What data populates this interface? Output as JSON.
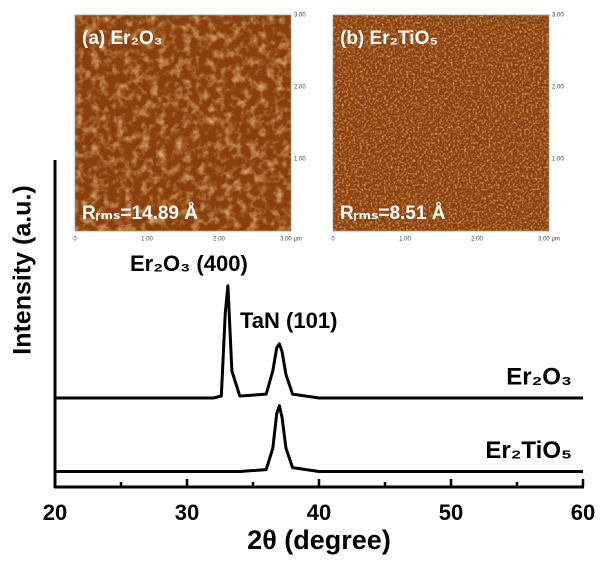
{
  "chart_data": {
    "type": "line",
    "xlabel": "2θ (degree)",
    "ylabel": "Intensity (a.u.)",
    "xlim": [
      20,
      60
    ],
    "xticks": [
      20,
      30,
      40,
      50,
      60
    ],
    "xminor": [
      25,
      35,
      45,
      55
    ],
    "ylim": [
      0,
      100
    ],
    "x": [
      20,
      25,
      30,
      32,
      32.6,
      32.9,
      33.1,
      33.4,
      34,
      36,
      36.5,
      36.8,
      37,
      37.2,
      37.5,
      38,
      40,
      45,
      50,
      55,
      60
    ],
    "series": [
      {
        "name": "Er₂O₃",
        "color": "#000000",
        "values": [
          23,
          23,
          23,
          23,
          23.5,
          45,
          52,
          30,
          23.5,
          24,
          30,
          36,
          37,
          35,
          29,
          24,
          23,
          23,
          23,
          23,
          23
        ]
      },
      {
        "name": "Er₂TiO₅",
        "color": "#000000",
        "values": [
          4,
          4,
          4,
          4,
          4,
          4,
          4,
          4,
          4,
          4.5,
          10,
          19,
          21,
          18,
          10,
          5,
          4,
          4,
          4,
          4,
          4
        ]
      }
    ],
    "annotations": [
      "Er₂O₃ (400)",
      "TaN (101)"
    ],
    "insets": [
      {
        "label": "(a) Er₂O₃",
        "roughness": "Rᵣₘₛ=14.89 Å",
        "xticklabels": [
          "0",
          "1.00",
          "2.00",
          "3.00 µm"
        ],
        "yticklabels": [
          "3.00",
          "2.00",
          "1.00"
        ]
      },
      {
        "label": "(b) Er₂TiO₅",
        "roughness": "Rᵣₘₛ=8.51 Å",
        "xticklabels": [
          "0",
          "1.00",
          "2.00",
          "3.00 µm"
        ],
        "yticklabels": [
          "3.00",
          "2.00",
          "1.00"
        ]
      }
    ]
  }
}
